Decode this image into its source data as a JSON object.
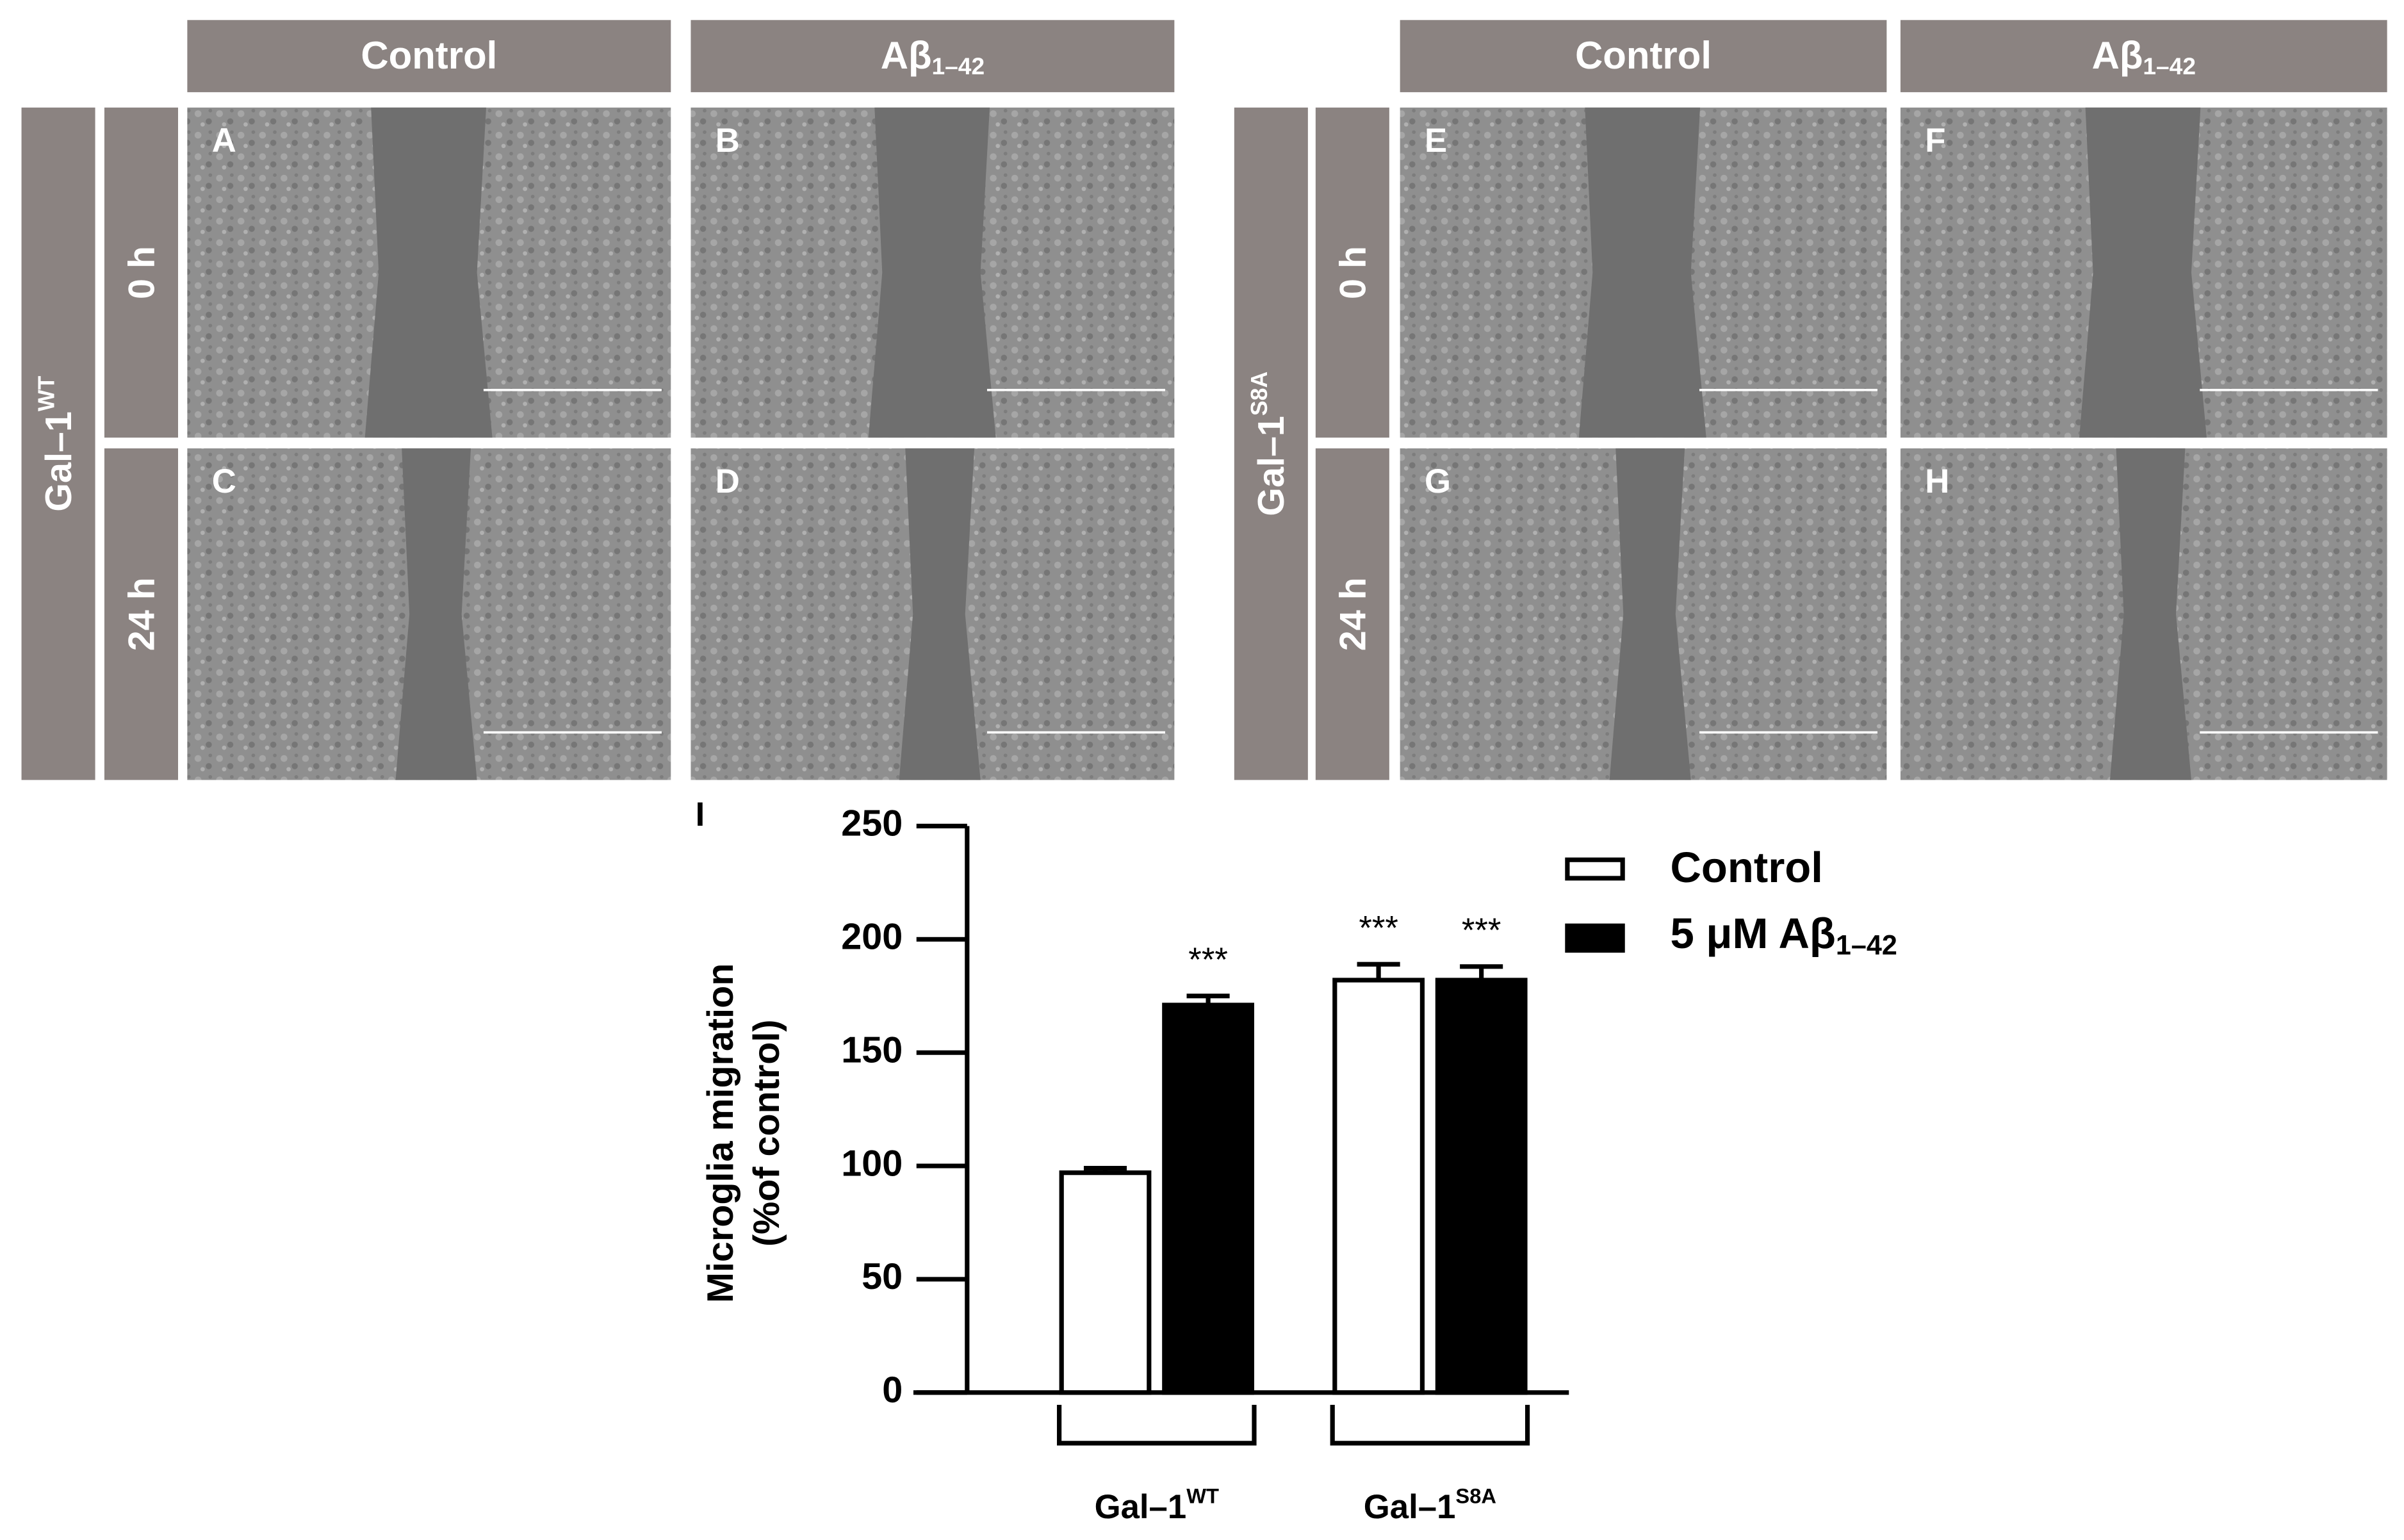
{
  "figure": {
    "groups": [
      {
        "label": {
          "main": "Gal–1",
          "sup": "WT"
        },
        "columns": [
          {
            "main": "Control"
          },
          {
            "main": "Aβ",
            "sub": "1–42"
          }
        ],
        "rows": [
          "0 h",
          "24 h"
        ],
        "panels": [
          "A",
          "B",
          "C",
          "D"
        ]
      },
      {
        "label": {
          "main": "Gal–1",
          "sup": "S8A"
        },
        "columns": [
          {
            "main": "Control"
          },
          {
            "main": "Aβ",
            "sub": "1–42"
          }
        ],
        "rows": [
          "0 h",
          "24 h"
        ],
        "panels": [
          "E",
          "F",
          "G",
          "H"
        ]
      }
    ]
  },
  "chart_data": {
    "type": "bar",
    "panel_label": "I",
    "y_label": [
      "Microglia migration",
      "(%of control)"
    ],
    "categories": [
      {
        "main": "Gal–1",
        "sup": "WT"
      },
      {
        "main": "Gal–1",
        "sup": "S8A"
      }
    ],
    "series": [
      {
        "name": "Control",
        "color": "#ffffff",
        "values": [
          97,
          182
        ],
        "errors": [
          2,
          7
        ],
        "annotations": [
          null,
          "***"
        ]
      },
      {
        "name": "5 μM Aβ",
        "name_sub": "1–42",
        "color": "#000000",
        "values": [
          171,
          182
        ],
        "errors": [
          4,
          6
        ],
        "annotations": [
          "***",
          "***"
        ]
      }
    ],
    "ylim": [
      0,
      250
    ],
    "yticks": [
      0,
      50,
      100,
      150,
      200,
      250
    ]
  }
}
